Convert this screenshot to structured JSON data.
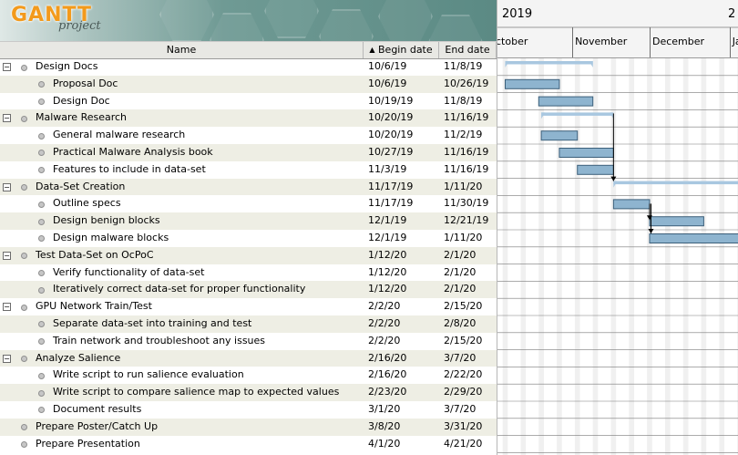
{
  "logo": {
    "title": "GANTT",
    "subtitle": "project"
  },
  "columns": {
    "name": "Name",
    "begin": "Begin date",
    "end": "End date",
    "sort_icon": "sort-ascending-icon"
  },
  "timeline": {
    "year": "2019",
    "next_year_fragment": "2",
    "months": [
      "ctober",
      "November",
      "December",
      "Jan"
    ]
  },
  "colors": {
    "bar_fill": "#8eb4cf",
    "bar_stroke": "#3c5f7a",
    "summary_fill": "#a8c7e0",
    "row_alt": "#eeeee4"
  },
  "tasks": [
    {
      "name": "Design Docs",
      "begin": "10/6/19",
      "end": "11/8/19",
      "level": 0,
      "summary": true,
      "expanded": true
    },
    {
      "name": "Proposal Doc",
      "begin": "10/6/19",
      "end": "10/26/19",
      "level": 1,
      "summary": false
    },
    {
      "name": "Design Doc",
      "begin": "10/19/19",
      "end": "11/8/19",
      "level": 1,
      "summary": false
    },
    {
      "name": "Malware Research",
      "begin": "10/20/19",
      "end": "11/16/19",
      "level": 0,
      "summary": true,
      "expanded": true
    },
    {
      "name": "General malware research",
      "begin": "10/20/19",
      "end": "11/2/19",
      "level": 1,
      "summary": false
    },
    {
      "name": "Practical Malware Analysis book",
      "begin": "10/27/19",
      "end": "11/16/19",
      "level": 1,
      "summary": false
    },
    {
      "name": "Features to include in data-set",
      "begin": "11/3/19",
      "end": "11/16/19",
      "level": 1,
      "summary": false
    },
    {
      "name": "Data-Set Creation",
      "begin": "11/17/19",
      "end": "1/11/20",
      "level": 0,
      "summary": true,
      "expanded": true
    },
    {
      "name": "Outline specs",
      "begin": "11/17/19",
      "end": "11/30/19",
      "level": 1,
      "summary": false
    },
    {
      "name": "Design benign blocks",
      "begin": "12/1/19",
      "end": "12/21/19",
      "level": 1,
      "summary": false
    },
    {
      "name": "Design malware blocks",
      "begin": "12/1/19",
      "end": "1/11/20",
      "level": 1,
      "summary": false
    },
    {
      "name": "Test Data-Set on OcPoC",
      "begin": "1/12/20",
      "end": "2/1/20",
      "level": 0,
      "summary": true,
      "expanded": true
    },
    {
      "name": "Verify functionality of data-set",
      "begin": "1/12/20",
      "end": "2/1/20",
      "level": 1,
      "summary": false
    },
    {
      "name": "Iteratively correct data-set for proper functionality",
      "begin": "1/12/20",
      "end": "2/1/20",
      "level": 1,
      "summary": false
    },
    {
      "name": "GPU Network Train/Test",
      "begin": "2/2/20",
      "end": "2/15/20",
      "level": 0,
      "summary": true,
      "expanded": true
    },
    {
      "name": "Separate data-set into training and test",
      "begin": "2/2/20",
      "end": "2/8/20",
      "level": 1,
      "summary": false
    },
    {
      "name": "Train network and troubleshoot any issues",
      "begin": "2/2/20",
      "end": "2/15/20",
      "level": 1,
      "summary": false
    },
    {
      "name": "Analyze Salience",
      "begin": "2/16/20",
      "end": "3/7/20",
      "level": 0,
      "summary": true,
      "expanded": true
    },
    {
      "name": "Write script to run salience evaluation",
      "begin": "2/16/20",
      "end": "2/22/20",
      "level": 1,
      "summary": false
    },
    {
      "name": "Write script to compare salience map to expected values",
      "begin": "2/23/20",
      "end": "2/29/20",
      "level": 1,
      "summary": false
    },
    {
      "name": "Document results",
      "begin": "3/1/20",
      "end": "3/7/20",
      "level": 1,
      "summary": false
    },
    {
      "name": "Prepare Poster/Catch Up",
      "begin": "3/8/20",
      "end": "3/31/20",
      "level": 0,
      "summary": false
    },
    {
      "name": "Prepare Presentation",
      "begin": "4/1/20",
      "end": "4/21/20",
      "level": 0,
      "summary": false
    }
  ]
}
